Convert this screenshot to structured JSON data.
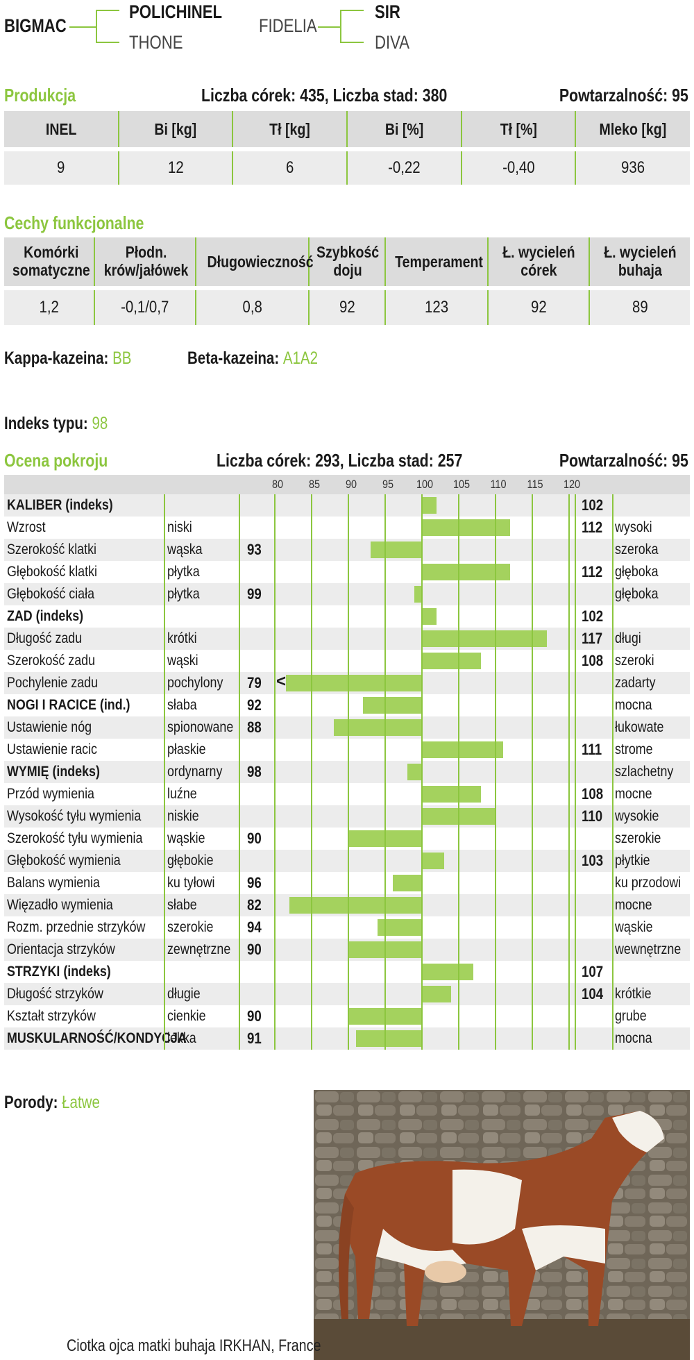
{
  "pedigree": {
    "sire": "BIGMAC",
    "sire_sire": "POLICHINEL",
    "sire_dam": "THONE",
    "dam": "FIDELIA",
    "dam_sire": "SIR",
    "dam_dam": "DIVA"
  },
  "production": {
    "title": "Produkcja",
    "daughters": "Liczba córek: 435, Liczba stad: 380",
    "repeatability": "Powtarzalność: 95",
    "headers": [
      "INEL",
      "Bi [kg]",
      "Tł [kg]",
      "Bi [%]",
      "Tł [%]",
      "Mleko [kg]"
    ],
    "values": [
      "9",
      "12",
      "6",
      "-0,22",
      "-0,40",
      "936"
    ]
  },
  "functional": {
    "title": "Cechy funkcjonalne",
    "headers": [
      [
        "Komórki",
        "somatyczne"
      ],
      [
        "Płodn.",
        "krów/jałówek"
      ],
      [
        "Długowieczność"
      ],
      [
        "Szybkość",
        "doju"
      ],
      [
        "Temperament"
      ],
      [
        "Ł. wycieleń",
        "córek"
      ],
      [
        "Ł. wycieleń",
        "buhaja"
      ]
    ],
    "values": [
      "1,2",
      "-0,1/0,7",
      "0,8",
      "92",
      "123",
      "92",
      "89"
    ]
  },
  "casein": {
    "kappa_label": "Kappa-kazeina:",
    "kappa_value": "BB",
    "beta_label": "Beta-kazeina:",
    "beta_value": "A1A2"
  },
  "type_index": {
    "label": "Indeks typu:",
    "value": "98"
  },
  "conformation": {
    "title": "Ocena pokroju",
    "daughters": "Liczba córek: 293, Liczba stad: 257",
    "repeatability": "Powtarzalność: 95"
  },
  "chart_data": {
    "type": "bar",
    "orientation": "horizontal",
    "baseline": 100,
    "xlim": [
      80,
      120
    ],
    "ticks": [
      80,
      85,
      90,
      95,
      100,
      105,
      110,
      115,
      120
    ],
    "rows": [
      {
        "name": "KALIBER (indeks)",
        "bold": true,
        "left": "",
        "right": "",
        "value": 102,
        "label": "102"
      },
      {
        "name": "Wzrost",
        "bold": false,
        "left": "niski",
        "right": "wysoki",
        "value": 112,
        "label": "112"
      },
      {
        "name": "Szerokość klatki",
        "bold": false,
        "left": "wąska",
        "right": "szeroka",
        "value": 93,
        "label": "93"
      },
      {
        "name": "Głębokość klatki",
        "bold": false,
        "left": "płytka",
        "right": "głęboka",
        "value": 112,
        "label": "112"
      },
      {
        "name": "Głębokość ciała",
        "bold": false,
        "left": "płytka",
        "right": "głęboka",
        "value": 99,
        "label": "99"
      },
      {
        "name": "ZAD (indeks)",
        "bold": true,
        "left": "",
        "right": "",
        "value": 102,
        "label": "102"
      },
      {
        "name": "Długość zadu",
        "bold": false,
        "left": "krótki",
        "right": "długi",
        "value": 117,
        "label": "117"
      },
      {
        "name": "Szerokość zadu",
        "bold": false,
        "left": "wąski",
        "right": "szeroki",
        "value": 108,
        "label": "108"
      },
      {
        "name": "Pochylenie zadu",
        "bold": false,
        "left": "pochylony",
        "right": "zadarty",
        "value": 79,
        "label": "79",
        "overflow": true
      },
      {
        "name": "NOGI I RACICE (ind.)",
        "bold": true,
        "left": "słaba",
        "right": "mocna",
        "value": 92,
        "label": "92"
      },
      {
        "name": "Ustawienie nóg",
        "bold": false,
        "left": "spionowane",
        "right": "łukowate",
        "value": 88,
        "label": "88"
      },
      {
        "name": "Ustawienie racic",
        "bold": false,
        "left": "płaskie",
        "right": "strome",
        "value": 111,
        "label": "111"
      },
      {
        "name": "WYMIĘ (indeks)",
        "bold": true,
        "left": "ordynarny",
        "right": "szlachetny",
        "value": 98,
        "label": "98"
      },
      {
        "name": "Przód wymienia",
        "bold": false,
        "left": "luźne",
        "right": "mocne",
        "value": 108,
        "label": "108"
      },
      {
        "name": "Wysokość tyłu wymienia",
        "bold": false,
        "left": "niskie",
        "right": "wysokie",
        "value": 110,
        "label": "110"
      },
      {
        "name": "Szerokość tyłu wymienia",
        "bold": false,
        "left": "wąskie",
        "right": "szerokie",
        "value": 90,
        "label": "90"
      },
      {
        "name": "Głębokość wymienia",
        "bold": false,
        "left": "głębokie",
        "right": "płytkie",
        "value": 103,
        "label": "103"
      },
      {
        "name": "Balans wymienia",
        "bold": false,
        "left": "ku tyłowi",
        "right": "ku przodowi",
        "value": 96,
        "label": "96"
      },
      {
        "name": "Więzadło wymienia",
        "bold": false,
        "left": "słabe",
        "right": "mocne",
        "value": 82,
        "label": "82"
      },
      {
        "name": "Rozm. przednie strzyków",
        "bold": false,
        "left": "szerokie",
        "right": "wąskie",
        "value": 94,
        "label": "94"
      },
      {
        "name": "Orientacja strzyków",
        "bold": false,
        "left": "zewnętrzne",
        "right": "wewnętrzne",
        "value": 90,
        "label": "90"
      },
      {
        "name": "STRZYKI (indeks)",
        "bold": true,
        "left": "",
        "right": "",
        "value": 107,
        "label": "107"
      },
      {
        "name": "Długość strzyków",
        "bold": false,
        "left": "długie",
        "right": "krótkie",
        "value": 104,
        "label": "104"
      },
      {
        "name": "Kształt strzyków",
        "bold": false,
        "left": "cienkie",
        "right": "grube",
        "value": 90,
        "label": "90"
      },
      {
        "name": "MUSKULARNOŚĆ/KONDYCJA",
        "bold": true,
        "left": "lekka",
        "right": "mocna",
        "value": 91,
        "label": "91"
      }
    ],
    "overflow_marker": "<",
    "colors": {
      "bar": "#a4d25e",
      "accent": "#8cc63f"
    }
  },
  "calving": {
    "label": "Porody:",
    "value": "Łatwe"
  },
  "photo": {
    "caption": "Ciotka ojca matki buhaja IRKHAN, France"
  },
  "colors": {
    "accent": "#8cc63f",
    "header_bg": "#dcdcdc",
    "row_bg": "#ececec"
  }
}
